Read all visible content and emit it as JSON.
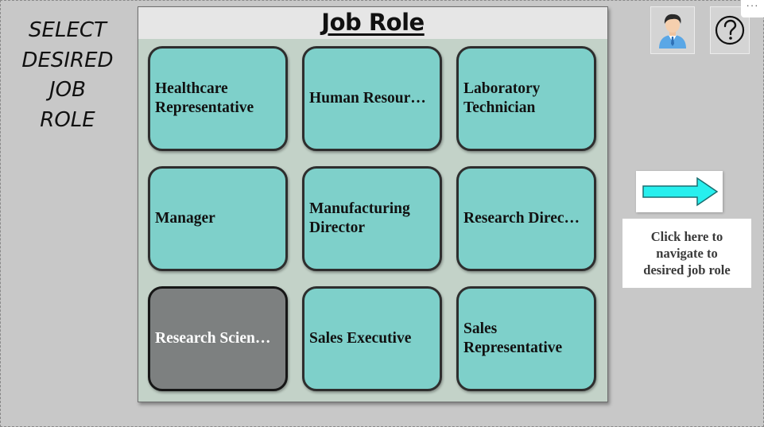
{
  "left_label": {
    "lines": [
      "SELECT",
      "DESIRED",
      "JOB",
      "ROLE"
    ]
  },
  "panel": {
    "title": "Job Role",
    "tiles": [
      {
        "label": "Healthcare\nRepresentative",
        "selected": false
      },
      {
        "label": "Human Resour…",
        "selected": false
      },
      {
        "label": "Laboratory\nTechnician",
        "selected": false
      },
      {
        "label": "Manager",
        "selected": false
      },
      {
        "label": "Manufacturing\nDirector",
        "selected": false
      },
      {
        "label": "Research Direc…",
        "selected": false
      },
      {
        "label": "Research Scien…",
        "selected": true
      },
      {
        "label": "Sales Executive",
        "selected": false
      },
      {
        "label": "Sales\nRepresentative",
        "selected": false
      }
    ]
  },
  "toolbar": {
    "avatar_icon": "user-avatar-icon",
    "help_icon": "help-question-icon",
    "more_label": "···"
  },
  "navigation": {
    "arrow_icon": "right-arrow-icon",
    "hint_text": "Click here to\nnavigate to\ndesired job role"
  },
  "colors": {
    "tile": "#7ed0ca",
    "tile_selected": "#7d8080",
    "arrow": "#27efee",
    "panel_bg": "#c3d2c8"
  }
}
